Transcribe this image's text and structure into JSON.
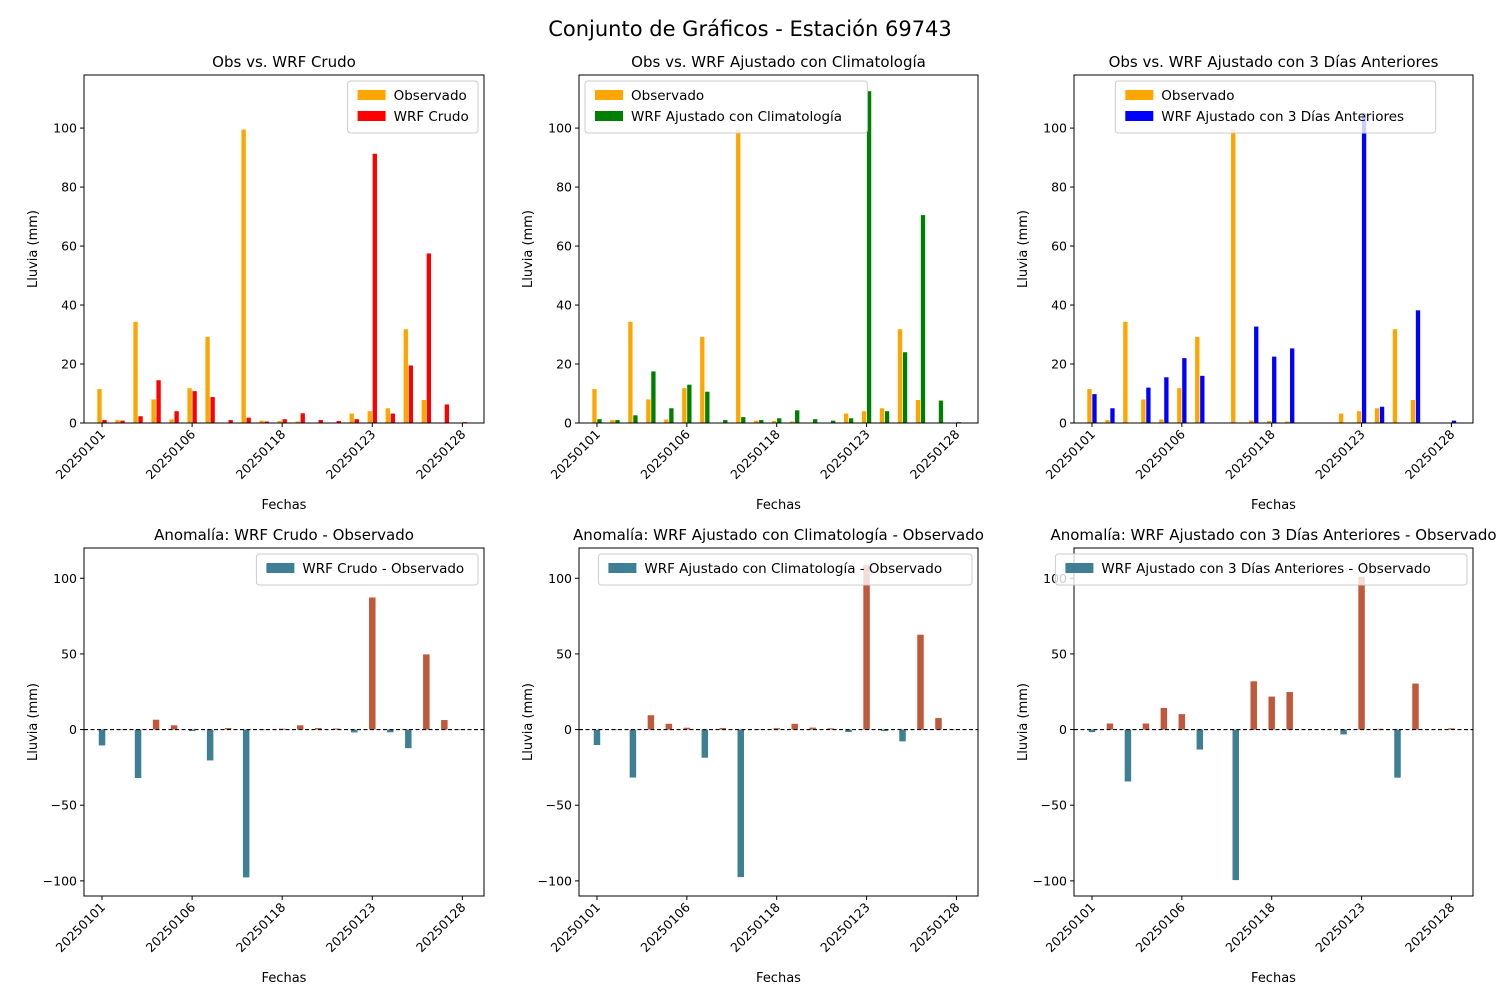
{
  "figure": {
    "title": "Conjunto de Gráficos - Estación 69743"
  },
  "colors": {
    "observado": "#ffa500",
    "wrf_crudo": "#ff0000",
    "wrf_clim": "#008000",
    "wrf_3dias": "#0000ff",
    "anomaly_negative": "#3f7f93",
    "anomaly_positive": "#c0583c"
  },
  "chart_data": [
    {
      "type": "bar",
      "title": "Obs vs. WRF Crudo",
      "xlabel": "Fechas",
      "ylabel": "Lluvia (mm)",
      "ylim": [
        0,
        118
      ],
      "yticks": [
        0,
        20,
        40,
        60,
        80,
        100
      ],
      "xtick_labels": [
        "20250101",
        "20250106",
        "20250118",
        "20250123",
        "20250128"
      ],
      "legend": "top-right",
      "grouped": true,
      "series": [
        {
          "name": "Observado",
          "color": "#ffa500",
          "values": [
            11.5,
            1,
            34.3,
            8,
            1.2,
            11.8,
            29.2,
            null,
            99.5,
            0.8,
            0.7,
            0.5,
            null,
            null,
            3.2,
            4,
            5,
            31.8,
            7.8,
            null,
            null
          ]
        },
        {
          "name": "WRF Crudo",
          "color": "#ff0000",
          "values": [
            1,
            0.8,
            2.3,
            14.5,
            4,
            10.8,
            8.8,
            1,
            1.8,
            0.5,
            1.3,
            3.3,
            1,
            0.7,
            1.3,
            91.3,
            3.2,
            19.5,
            57.5,
            6.3,
            0.3
          ]
        }
      ]
    },
    {
      "type": "bar",
      "title": "Obs vs. WRF Ajustado con Climatología",
      "xlabel": "Fechas",
      "ylabel": "Lluvia (mm)",
      "ylim": [
        0,
        118
      ],
      "yticks": [
        0,
        20,
        40,
        60,
        80,
        100
      ],
      "xtick_labels": [
        "20250101",
        "20250106",
        "20250118",
        "20250123",
        "20250128"
      ],
      "legend": "top-left",
      "grouped": true,
      "series": [
        {
          "name": "Observado",
          "color": "#ffa500",
          "values": [
            11.5,
            1,
            34.3,
            8,
            1.2,
            11.8,
            29.2,
            null,
            99.5,
            0.8,
            0.7,
            0.5,
            null,
            null,
            3.2,
            4,
            5,
            31.8,
            7.8,
            null,
            null
          ]
        },
        {
          "name": "WRF Ajustado con Climatología",
          "color": "#008000",
          "values": [
            1.3,
            1,
            2.6,
            17.5,
            5,
            13,
            10.6,
            1,
            2,
            1,
            1.6,
            4.3,
            1.3,
            0.8,
            1.6,
            112.5,
            4,
            24,
            70.5,
            7.6,
            0.3
          ]
        }
      ]
    },
    {
      "type": "bar",
      "title": "Obs vs. WRF Ajustado con 3 Días Anteriores",
      "xlabel": "Fechas",
      "ylabel": "Lluvia (mm)",
      "ylim": [
        0,
        118
      ],
      "yticks": [
        0,
        20,
        40,
        60,
        80,
        100
      ],
      "xtick_labels": [
        "20250101",
        "20250106",
        "20250118",
        "20250123",
        "20250128"
      ],
      "legend": "top-center",
      "grouped": true,
      "series": [
        {
          "name": "Observado",
          "color": "#ffa500",
          "values": [
            11.5,
            1,
            34.3,
            8,
            1.2,
            11.8,
            29.2,
            null,
            99.5,
            0.8,
            0.7,
            0.5,
            null,
            null,
            3.2,
            4,
            5,
            31.8,
            7.8,
            null,
            null
          ]
        },
        {
          "name": "WRF Ajustado con 3 Días Anteriores",
          "color": "#0000ff",
          "values": [
            9.8,
            5,
            null,
            12,
            15.5,
            22,
            16,
            null,
            null,
            32.7,
            22.5,
            25.3,
            null,
            null,
            null,
            105,
            5.5,
            null,
            38.2,
            null,
            0.8
          ]
        }
      ]
    },
    {
      "type": "bar",
      "title": "Anomalía: WRF Crudo - Observado",
      "xlabel": "Fechas",
      "ylabel": "Lluvia (mm)",
      "ylim": [
        -110,
        120
      ],
      "yticks": [
        -100,
        -50,
        0,
        50,
        100
      ],
      "xtick_labels": [
        "20250101",
        "20250106",
        "20250118",
        "20250123",
        "20250128"
      ],
      "legend": "top-right",
      "zero_line": true,
      "series": [
        {
          "name": "WRF Crudo - Observado",
          "color": "#3f7f93",
          "values": [
            -10.5,
            -0.2,
            -32,
            6.5,
            2.8,
            -1,
            -20.4,
            1,
            -97.7,
            -0.3,
            0.6,
            2.8,
            1,
            0.7,
            -1.9,
            87.3,
            -1.8,
            -12.3,
            49.7,
            6.3,
            0.3
          ]
        }
      ]
    },
    {
      "type": "bar",
      "title": "Anomalía: WRF Ajustado con Climatología - Observado",
      "xlabel": "Fechas",
      "ylabel": "Lluvia (mm)",
      "ylim": [
        -110,
        120
      ],
      "yticks": [
        -100,
        -50,
        0,
        50,
        100
      ],
      "xtick_labels": [
        "20250101",
        "20250106",
        "20250118",
        "20250123",
        "20250128"
      ],
      "legend": "top-right",
      "zero_line": true,
      "series": [
        {
          "name": "WRF Ajustado con Climatología - Observado",
          "color": "#3f7f93",
          "values": [
            -10.2,
            0,
            -31.7,
            9.5,
            3.8,
            1.2,
            -18.6,
            1,
            -97.5,
            0.2,
            0.9,
            3.8,
            1.3,
            0.8,
            -1.6,
            108.5,
            -1,
            -7.8,
            62.7,
            7.6,
            0.3
          ]
        }
      ]
    },
    {
      "type": "bar",
      "title": "Anomalía: WRF Ajustado con 3 Días Anteriores - Observado",
      "xlabel": "Fechas",
      "ylabel": "Lluvia (mm)",
      "ylim": [
        -110,
        120
      ],
      "yticks": [
        -100,
        -50,
        0,
        50,
        100
      ],
      "xtick_labels": [
        "20250101",
        "20250106",
        "20250118",
        "20250123",
        "20250128"
      ],
      "legend": "top-right",
      "zero_line": true,
      "series": [
        {
          "name": "WRF Ajustado con 3 Días Anteriores - Observado",
          "color": "#3f7f93",
          "values": [
            -1.7,
            4,
            -34.3,
            4,
            14.3,
            10.2,
            -13.2,
            null,
            -99.5,
            31.9,
            21.8,
            24.8,
            null,
            null,
            -3.2,
            101,
            0.5,
            -31.8,
            30.4,
            null,
            0.8
          ]
        }
      ]
    }
  ]
}
